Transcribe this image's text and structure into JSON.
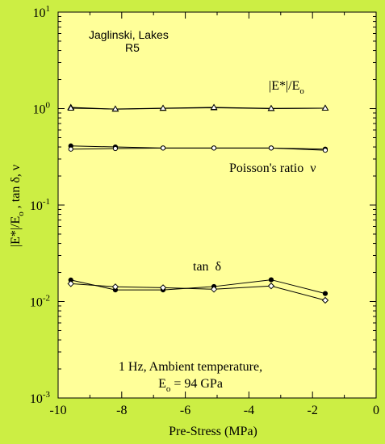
{
  "chart_data": {
    "type": "line",
    "y_scale": "log",
    "xlim": [
      -10,
      0
    ],
    "ylim": [
      0.001,
      10
    ],
    "plot_background": "#ffff99",
    "figure_background": "#ccee44",
    "x_ticks": [
      "-10",
      "-8",
      "-6",
      "-4",
      "-2",
      "0"
    ],
    "xlabel": "Pre-Stress (MPa)",
    "ylabel": "|E*|/Eo , tan δ, ν",
    "ylabel_parts": {
      "a": "|E*|/E",
      "sub": "o",
      "b": " , tan δ, ν"
    },
    "y_ticks": [
      {
        "value": 10,
        "base": "10",
        "exp": "1"
      },
      {
        "value": 1,
        "base": "10",
        "exp": "0"
      },
      {
        "value": 0.1,
        "base": "10",
        "exp": "-1"
      },
      {
        "value": 0.01,
        "base": "10",
        "exp": "-2"
      },
      {
        "value": 0.001,
        "base": "10",
        "exp": "-3"
      }
    ],
    "annotations": {
      "author": "Jaglinski, Lakes",
      "sample": "R5",
      "modulus_label": {
        "a": "|E*|/E",
        "sub": "o"
      },
      "poisson_label": "Poisson's ratio  ν",
      "tan_label": "tan  δ",
      "conditions_line1": "1 Hz, Ambient temperature,",
      "conditions_line2": {
        "a": "E",
        "sub": "o",
        "b": " = 94 GPa"
      }
    },
    "series": [
      {
        "group": "modulus",
        "marker": "filled-triangle",
        "x": [
          -9.6,
          -8.2,
          -6.7,
          -5.1,
          -3.3,
          -1.6
        ],
        "y": [
          1.03,
          0.985,
          1.005,
          1.02,
          1.0,
          1.01
        ]
      },
      {
        "group": "modulus",
        "marker": "open-triangle",
        "x": [
          -9.6,
          -8.2,
          -6.7,
          -5.1,
          -3.3,
          -1.6
        ],
        "y": [
          1.01,
          0.99,
          1.01,
          1.03,
          1.005,
          1.01
        ]
      },
      {
        "group": "poisson",
        "marker": "filled-circle",
        "x": [
          -9.6,
          -8.2,
          -6.7,
          -5.1,
          -3.3,
          -1.6
        ],
        "y": [
          0.41,
          0.4,
          0.39,
          0.39,
          0.39,
          0.38
        ]
      },
      {
        "group": "poisson",
        "marker": "open-circle",
        "x": [
          -9.6,
          -8.2,
          -6.7,
          -5.1,
          -3.3,
          -1.6
        ],
        "y": [
          0.38,
          0.385,
          0.39,
          0.39,
          0.39,
          0.37
        ]
      },
      {
        "group": "tan",
        "marker": "filled-circle",
        "x": [
          -9.6,
          -8.2,
          -6.7,
          -5.1,
          -3.3,
          -1.6
        ],
        "y": [
          0.0167,
          0.0132,
          0.0132,
          0.0143,
          0.0168,
          0.0121
        ]
      },
      {
        "group": "tan",
        "marker": "open-diamond",
        "x": [
          -9.6,
          -8.2,
          -6.7,
          -5.1,
          -3.3,
          -1.6
        ],
        "y": [
          0.0153,
          0.0142,
          0.0139,
          0.0134,
          0.0145,
          0.0103
        ]
      }
    ]
  }
}
